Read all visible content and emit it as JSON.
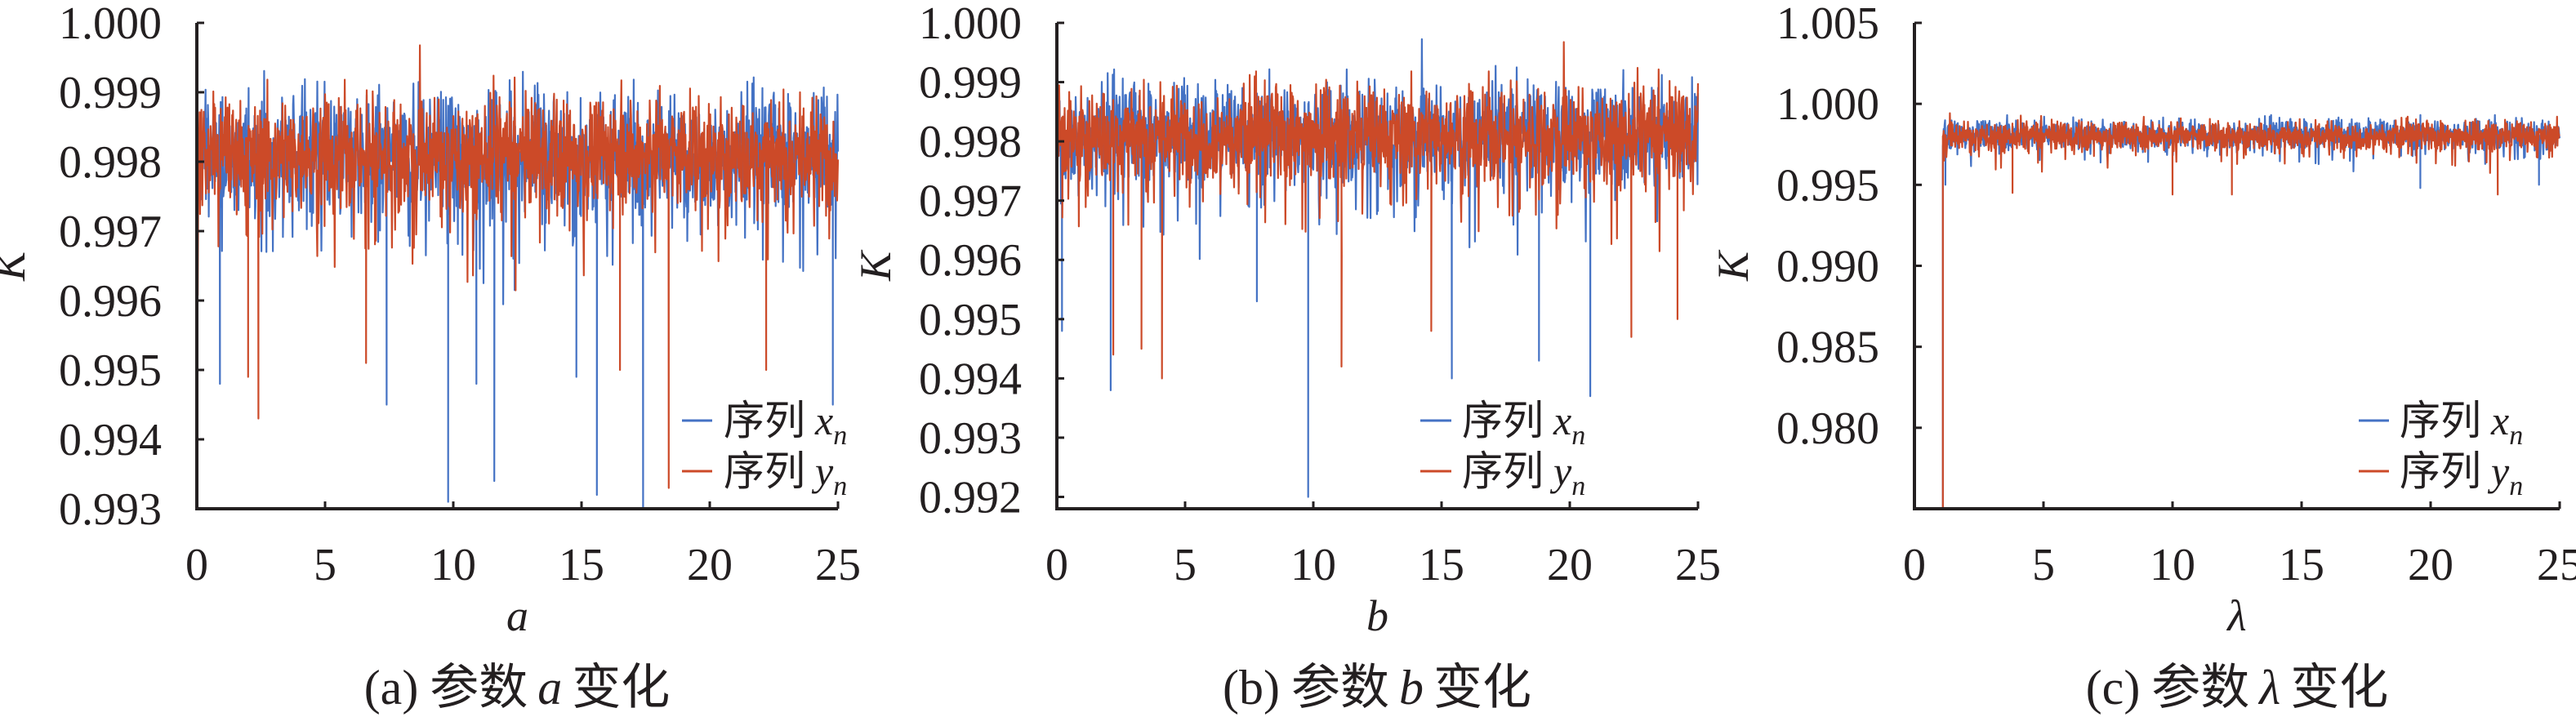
{
  "colors": {
    "xn": "#4472C4",
    "yn": "#CC4A28",
    "axis": "#231f20"
  },
  "chart_data": [
    {
      "type": "line",
      "caption": {
        "label": "(a)",
        "text": "参数",
        "var": "a",
        "suffix": "变化"
      },
      "xlabel": "a",
      "ylabel": "K",
      "xlim": [
        0,
        25
      ],
      "ylim": [
        0.993,
        1.0
      ],
      "xticks": [
        "0",
        "5",
        "10",
        "15",
        "20",
        "25"
      ],
      "yticks": [
        "0.993",
        "0.994",
        "0.995",
        "0.996",
        "0.997",
        "0.998",
        "0.999",
        "1.000"
      ],
      "legend": {
        "position": "bottom-right",
        "entries": [
          {
            "prefix": "序列",
            "var": "x",
            "sub": "n"
          },
          {
            "prefix": "序列",
            "var": "y",
            "sub": "n"
          }
        ]
      },
      "series": [
        {
          "name": "序列 x_n",
          "color_key": "xn",
          "mean": 0.9981,
          "band": [
            0.996,
            0.9994
          ],
          "minima": [
            [
              0.9,
              0.9948
            ],
            [
              7.4,
              0.9945
            ],
            [
              9.8,
              0.9931
            ],
            [
              10.9,
              0.9948
            ],
            [
              11.6,
              0.9934
            ],
            [
              14.8,
              0.9949
            ],
            [
              15.6,
              0.9932
            ],
            [
              17.4,
              0.993
            ],
            [
              24.8,
              0.9945
            ]
          ]
        },
        {
          "name": "序列 y_n",
          "color_key": "yn",
          "mean": 0.9981,
          "band": [
            0.9962,
            0.9995
          ],
          "minima": [
            [
              2.0,
              0.9949
            ],
            [
              2.4,
              0.9943
            ],
            [
              6.6,
              0.9951
            ],
            [
              16.5,
              0.995
            ],
            [
              18.4,
              0.9933
            ],
            [
              22.2,
              0.995
            ]
          ]
        }
      ]
    },
    {
      "type": "line",
      "caption": {
        "label": "(b)",
        "text": "参数",
        "var": "b",
        "suffix": "变化"
      },
      "xlabel": "b",
      "ylabel": "K",
      "xlim": [
        0,
        25
      ],
      "ylim": [
        0.9918,
        1.0
      ],
      "xticks": [
        "0",
        "5",
        "10",
        "15",
        "20",
        "25"
      ],
      "yticks": [
        "0.992",
        "0.993",
        "0.994",
        "0.995",
        "0.996",
        "0.997",
        "0.998",
        "0.999",
        "1.000"
      ],
      "legend": {
        "position": "bottom-right",
        "entries": [
          {
            "prefix": "序列",
            "var": "x",
            "sub": "n"
          },
          {
            "prefix": "序列",
            "var": "y",
            "sub": "n"
          }
        ]
      },
      "series": [
        {
          "name": "序列 x_n",
          "color_key": "xn",
          "mean": 0.9981,
          "band": [
            0.9962,
            0.9996
          ],
          "minima": [
            [
              0.2,
              0.9948
            ],
            [
              2.1,
              0.9938
            ],
            [
              7.8,
              0.9953
            ],
            [
              9.8,
              0.992
            ],
            [
              15.4,
              0.994
            ],
            [
              18.8,
              0.9943
            ],
            [
              20.8,
              0.9937
            ]
          ]
        },
        {
          "name": "序列 y_n",
          "color_key": "yn",
          "mean": 0.9981,
          "band": [
            0.9963,
            0.9996
          ],
          "minima": [
            [
              2.2,
              0.9944
            ],
            [
              3.3,
              0.9945
            ],
            [
              4.1,
              0.994
            ],
            [
              11.1,
              0.9942
            ],
            [
              14.6,
              0.9948
            ],
            [
              22.4,
              0.9947
            ],
            [
              24.2,
              0.995
            ]
          ]
        }
      ]
    },
    {
      "type": "line",
      "caption": {
        "label": "(c)",
        "text": "参数",
        "var": "λ",
        "suffix": "变化"
      },
      "xlabel": "λ",
      "ylabel": "K",
      "xlim": [
        0,
        25
      ],
      "ylim": [
        0.975,
        1.005
      ],
      "xticks": [
        "0",
        "5",
        "10",
        "15",
        "20",
        "25"
      ],
      "yticks": [
        "0.980",
        "0.985",
        "0.990",
        "0.995",
        "1.000",
        "1.005"
      ],
      "legend": {
        "position": "bottom-right",
        "entries": [
          {
            "prefix": "序列",
            "var": "x",
            "sub": "n"
          },
          {
            "prefix": "序列",
            "var": "y",
            "sub": "n"
          }
        ]
      },
      "series": [
        {
          "name": "序列 x_n",
          "color_key": "xn",
          "start_x": 1.1,
          "mean": 0.9981,
          "band": [
            0.9955,
            0.9992
          ],
          "minima": [
            [
              1.2,
              0.995
            ],
            [
              19.6,
              0.9948
            ],
            [
              24.2,
              0.995
            ]
          ]
        },
        {
          "name": "序列 y_n",
          "color_key": "yn",
          "start_x": 1.1,
          "mean": 0.998,
          "band": [
            0.9955,
            0.9992
          ],
          "minima": [
            [
              1.1,
              0.975
            ],
            [
              3.8,
              0.9945
            ],
            [
              10.0,
              0.9944
            ],
            [
              12.3,
              0.9944
            ],
            [
              22.6,
              0.9944
            ]
          ]
        }
      ]
    }
  ]
}
